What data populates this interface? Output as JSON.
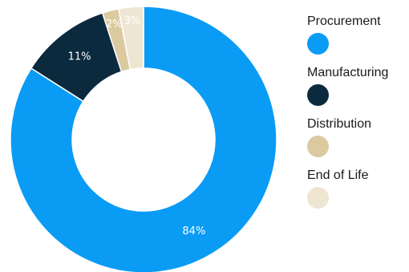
{
  "chart_data": {
    "type": "pie",
    "variant": "donut",
    "title": "",
    "legend_position": "right",
    "slices": [
      {
        "name": "Procurement",
        "value": 84,
        "label": "84%",
        "color": "#0a9bf5",
        "label_color": "#ffffff"
      },
      {
        "name": "Manufacturing",
        "value": 11,
        "label": "11%",
        "color": "#0b2a3e",
        "label_color": "#ffffff"
      },
      {
        "name": "Distribution",
        "value": 2,
        "label": "2%",
        "color": "#dbc9a0",
        "label_color": "#ffffff"
      },
      {
        "name": "End of Life",
        "value": 3,
        "label": "3%",
        "color": "#eee6d2",
        "label_color": "#ffffff"
      }
    ]
  }
}
